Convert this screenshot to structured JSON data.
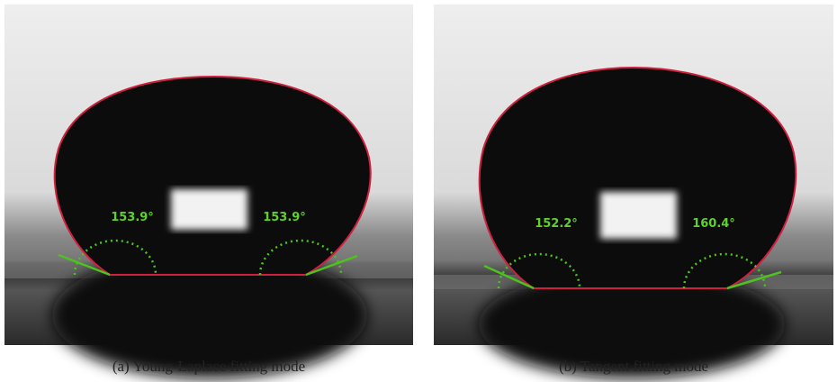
{
  "panels": [
    {
      "left_angle": "153.9°",
      "right_angle": "153.9°",
      "caption": "(a) Young-Laplace fitting mode"
    },
    {
      "left_angle": "152.2°",
      "right_angle": "160.4°",
      "caption": "(b) Tangent fitting mode"
    }
  ]
}
